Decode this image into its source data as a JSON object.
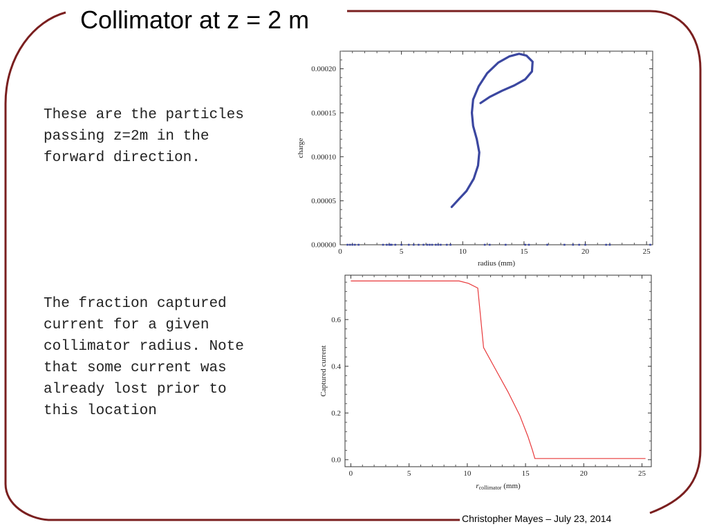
{
  "slide": {
    "title": "Collimator at z = 2 m",
    "para1": "These are the particles passing z=2m in the forward direction.",
    "para2": "The fraction captured current for a given collimator radius. Note that some current was already lost prior to this location",
    "footer": "Christopher Mayes – July 23, 2014"
  },
  "colors": {
    "frame": "#7a1f1f",
    "series1": "#3b47a0",
    "series2": "#e8383a"
  },
  "chart_data": [
    {
      "type": "scatter",
      "title": "",
      "xlabel": "radius (mm)",
      "ylabel": "charge",
      "xlim": [
        0,
        25.5
      ],
      "ylim": [
        0,
        0.00022
      ],
      "xticks": [
        0,
        5,
        10,
        15,
        20,
        25
      ],
      "xtick_labels": [
        "0",
        "5",
        "10",
        "15",
        "20",
        "25"
      ],
      "yticks": [
        0,
        5e-05,
        0.0001,
        0.00015,
        0.0002
      ],
      "ytick_labels": [
        "0.00000",
        "0.00005",
        "0.00010",
        "0.00015",
        "0.00020"
      ],
      "series": [
        {
          "marker": "line",
          "x": [
            9.1,
            9.7,
            10.3,
            10.9,
            11.25,
            11.35,
            11.15,
            10.85,
            10.75,
            10.85,
            11.3,
            12.0,
            12.9,
            13.8,
            14.6,
            15.2,
            15.7,
            15.65,
            15.1,
            14.2,
            13.2,
            12.2,
            11.45
          ],
          "y": [
            4.3e-05,
            5.2e-05,
            6.1e-05,
            7.5e-05,
            9e-05,
            0.000105,
            0.00012,
            0.000135,
            0.00015,
            0.000165,
            0.00018,
            0.000195,
            0.000207,
            0.000214,
            0.000217,
            0.000215,
            0.000208,
            0.000197,
            0.000188,
            0.000181,
            0.000175,
            0.000168,
            0.000161
          ]
        },
        {
          "marker": "dots",
          "x": [
            0.6,
            0.8,
            1.0,
            1.2,
            1.5,
            3.5,
            3.8,
            4.0,
            4.1,
            4.2,
            4.5,
            5.0,
            5.6,
            6.0,
            6.4,
            6.8,
            7.1,
            7.3,
            7.5,
            7.8,
            8.0,
            8.2,
            8.7,
            9.0,
            11.8,
            12.2,
            13.5,
            15.1,
            15.4,
            16.9,
            18.3,
            19.0,
            19.5,
            20.0,
            21.7,
            22.0,
            25.3
          ],
          "y": [
            0,
            0,
            0,
            0,
            0,
            0,
            0,
            0,
            0,
            0,
            0,
            0,
            0,
            0,
            0,
            0,
            0,
            0,
            0,
            0,
            0,
            0,
            0,
            0,
            0,
            0,
            0,
            0,
            0,
            0,
            0,
            0,
            0,
            0,
            0,
            0,
            0
          ]
        }
      ]
    },
    {
      "type": "line",
      "title": "",
      "xlabel_main": "r",
      "xlabel_sub": "collimator",
      "xlabel_unit": " (mm)",
      "ylabel": "Captured current",
      "xlim": [
        -0.5,
        25.8
      ],
      "ylim": [
        -0.03,
        0.79
      ],
      "xticks": [
        0,
        5,
        10,
        15,
        20,
        25
      ],
      "xtick_labels": [
        "0",
        "5",
        "10",
        "15",
        "20",
        "25"
      ],
      "yticks": [
        0,
        0.2,
        0.4,
        0.6
      ],
      "ytick_labels": [
        "0.0",
        "0.2",
        "0.4",
        "0.6"
      ],
      "series": [
        {
          "x": [
            0,
            9.3,
            10.1,
            10.9,
            11.4,
            12.5,
            13.5,
            14.5,
            15.2,
            15.6,
            15.8,
            25.3
          ],
          "y": [
            0.765,
            0.765,
            0.755,
            0.735,
            0.48,
            0.38,
            0.29,
            0.19,
            0.1,
            0.04,
            0.005,
            0.005
          ]
        }
      ]
    }
  ]
}
